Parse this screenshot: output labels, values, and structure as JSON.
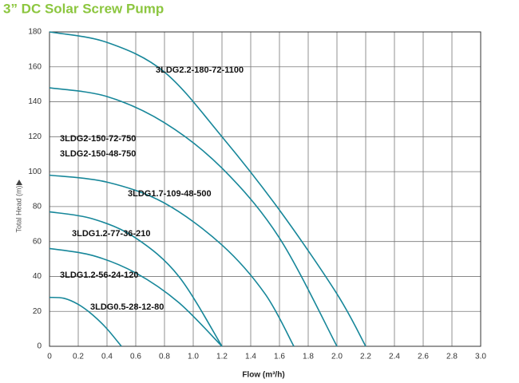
{
  "chart_data": {
    "type": "line",
    "title": "3” DC Solar Screw Pump",
    "xlabel": "Flow (m³/h)",
    "ylabel": "Total Head (m)",
    "xlim": [
      0,
      3.0
    ],
    "ylim": [
      0,
      180
    ],
    "xticks": [
      0,
      0.2,
      0.4,
      0.6,
      0.8,
      {
        "value": 1.0,
        "label": "1.0"
      },
      1.2,
      1.4,
      1.6,
      1.8,
      {
        "value": 2.0,
        "label": "2.0"
      },
      2.2,
      2.4,
      2.6,
      2.8,
      {
        "value": 3.0,
        "label": "3.0"
      }
    ],
    "yticks": [
      0,
      20,
      40,
      60,
      80,
      100,
      120,
      140,
      160,
      180
    ],
    "grid": true,
    "series": [
      {
        "name": "3LDG2.2-180-72-1100",
        "color": "#17879a",
        "x": [
          0,
          0.4,
          0.8,
          1.2,
          1.6,
          2.0,
          2.2
        ],
        "values": [
          180,
          174,
          157,
          120,
          78,
          30,
          0
        ]
      },
      {
        "name": "3LDG2-150-72-750",
        "color": "#17879a",
        "x": [
          0,
          0.4,
          0.8,
          1.2,
          1.6,
          2.0
        ],
        "values": [
          148,
          143,
          128,
          102,
          62,
          0
        ]
      },
      {
        "name": "3LDG1.7-109-48-500",
        "color": "#17879a",
        "x": [
          0,
          0.4,
          0.8,
          1.2,
          1.5,
          1.7
        ],
        "values": [
          98,
          94,
          82,
          58,
          30,
          0
        ]
      },
      {
        "name": "3LDG1.2-77-36-210",
        "color": "#17879a",
        "x": [
          0,
          0.3,
          0.6,
          0.9,
          1.2
        ],
        "values": [
          77,
          73,
          62,
          40,
          0
        ]
      },
      {
        "name": "3LDG1.2-56-24-120",
        "color": "#17879a",
        "x": [
          0,
          0.3,
          0.6,
          0.9,
          1.2
        ],
        "values": [
          56,
          52,
          42,
          25,
          0
        ]
      },
      {
        "name": "3LDG0.5-28-12-80",
        "color": "#17879a",
        "x": [
          0,
          0.1,
          0.2,
          0.3,
          0.4,
          0.5
        ],
        "values": [
          28,
          27.5,
          24,
          18,
          10,
          0
        ]
      }
    ],
    "annotations": [
      "3LDG2-150-48-750"
    ]
  }
}
